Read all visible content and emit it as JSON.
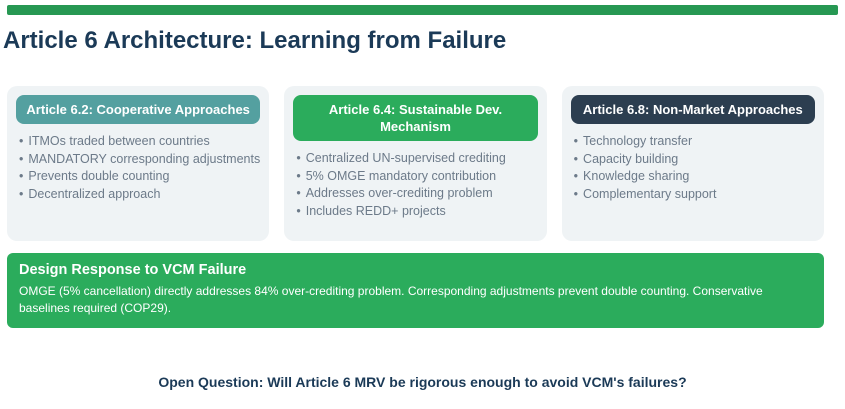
{
  "header": {
    "title": "Article 6 Architecture: Learning from Failure"
  },
  "markers": {
    "bullet": "•"
  },
  "cards": [
    {
      "title": "Article 6.2: Cooperative Approaches",
      "header_color": "#54a0a0",
      "bullets": [
        "ITMOs traded between countries",
        "MANDATORY corresponding adjustments",
        "Prevents double counting",
        "Decentralized approach"
      ]
    },
    {
      "title": "Article 6.4: Sustainable Dev. Mechanism",
      "header_color": "#2bac5c",
      "bullets": [
        "Centralized UN-supervised crediting",
        "5% OMGE mandatory contribution",
        "Addresses over-crediting problem",
        "Includes REDD+ projects"
      ]
    },
    {
      "title": "Article 6.8: Non-Market Approaches",
      "header_color": "#2c3e50",
      "bullets": [
        "Technology transfer",
        "Capacity building",
        "Knowledge sharing",
        "Complementary support"
      ]
    }
  ],
  "response_panel": {
    "title": "Design Response to VCM Failure",
    "body": "OMGE (5% cancellation) directly addresses 84% over-crediting problem. Corresponding adjustments prevent double counting. Conservative baselines required (COP29).",
    "background": "#2bac5c"
  },
  "footer": {
    "question": "Open Question: Will Article 6 MRV be rigorous enough to avoid VCM's failures?"
  },
  "colors": {
    "accent_bar": "#279853",
    "title_text": "#1b3a57",
    "bullet_text": "#6c7a89",
    "card_background": "#eff3f5"
  }
}
